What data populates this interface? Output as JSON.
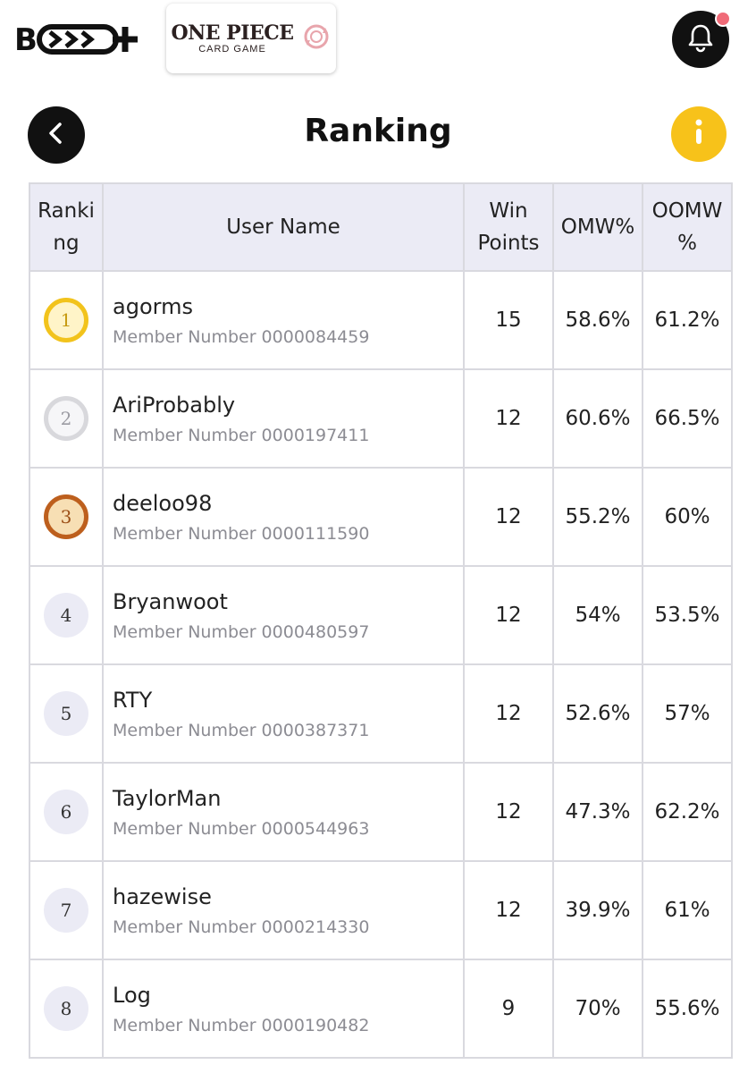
{
  "header": {
    "brand_logo_text": "B·TCG+",
    "game_title": "ONE PIECE",
    "game_subtitle": "CARD GAME"
  },
  "page": {
    "title": "Ranking"
  },
  "table": {
    "headers": {
      "ranking": "Ranki ng",
      "user_name": "User Name",
      "win_points": "Win Points",
      "omw": "OMW%",
      "oomw": "OOMW %"
    },
    "rows": [
      {
        "rank": "1",
        "name": "agorms",
        "member": "Member Number 0000084459",
        "win_points": "15",
        "omw": "58.6%",
        "oomw": "61.2%"
      },
      {
        "rank": "2",
        "name": "AriProbably",
        "member": "Member Number 0000197411",
        "win_points": "12",
        "omw": "60.6%",
        "oomw": "66.5%"
      },
      {
        "rank": "3",
        "name": "deeloo98",
        "member": "Member Number 0000111590",
        "win_points": "12",
        "omw": "55.2%",
        "oomw": "60%"
      },
      {
        "rank": "4",
        "name": "Bryanwoot",
        "member": "Member Number 0000480597",
        "win_points": "12",
        "omw": "54%",
        "oomw": "53.5%"
      },
      {
        "rank": "5",
        "name": "RTY",
        "member": "Member Number 0000387371",
        "win_points": "12",
        "omw": "52.6%",
        "oomw": "57%"
      },
      {
        "rank": "6",
        "name": "TaylorMan",
        "member": "Member Number 0000544963",
        "win_points": "12",
        "omw": "47.3%",
        "oomw": "62.2%"
      },
      {
        "rank": "7",
        "name": "hazewise",
        "member": "Member Number 0000214330",
        "win_points": "12",
        "omw": "39.9%",
        "oomw": "61%"
      },
      {
        "rank": "8",
        "name": "Log",
        "member": "Member Number 0000190482",
        "win_points": "9",
        "omw": "70%",
        "oomw": "55.6%"
      }
    ]
  },
  "colors": {
    "gold": "#f2c31c",
    "silver": "#d8d8dc",
    "bronze": "#bd5f1d",
    "info_button": "#f7c21a",
    "notification_dot": "#f06b78",
    "header_background": "#ebebf5"
  },
  "icons": {
    "back": "chevron-left-icon",
    "notification": "bell-icon",
    "info": "info-icon",
    "game_logo": "circular-arrows-icon"
  }
}
